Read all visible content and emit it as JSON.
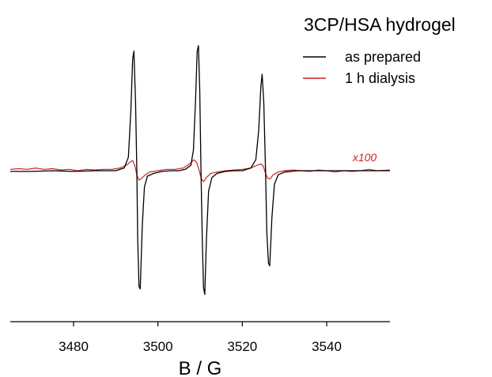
{
  "chart_data": {
    "type": "line",
    "title": "3CP/HSA hydrogel",
    "xlabel": "B / G",
    "ylabel": "",
    "xlim": [
      3465,
      3555
    ],
    "ylim": [
      -1.0,
      1.0
    ],
    "x_ticks": [
      3480,
      3500,
      3520,
      3540
    ],
    "y_axis_visible": false,
    "grid": false,
    "legend_position": "top-right",
    "annotations": [
      {
        "text": "x100",
        "x": 3549,
        "y": 0.07,
        "color": "#cc2222",
        "italic": true
      }
    ],
    "series": [
      {
        "name": "as prepared",
        "color": "#000000",
        "points": [
          [
            3465.0,
            -0.005
          ],
          [
            3470.0,
            -0.005
          ],
          [
            3475.0,
            0.0
          ],
          [
            3480.0,
            -0.005
          ],
          [
            3485.0,
            0.0
          ],
          [
            3490.0,
            0.0
          ],
          [
            3492.0,
            0.02
          ],
          [
            3493.0,
            0.1
          ],
          [
            3493.6,
            0.45
          ],
          [
            3494.0,
            0.82
          ],
          [
            3494.3,
            0.88
          ],
          [
            3494.7,
            0.5
          ],
          [
            3495.0,
            0.0
          ],
          [
            3495.2,
            -0.5
          ],
          [
            3495.5,
            -0.85
          ],
          [
            3495.8,
            -0.87
          ],
          [
            3496.3,
            -0.4
          ],
          [
            3496.8,
            -0.12
          ],
          [
            3497.5,
            -0.04
          ],
          [
            3499.0,
            -0.02
          ],
          [
            3501.0,
            -0.005
          ],
          [
            3503.0,
            0.0
          ],
          [
            3505.0,
            0.0
          ],
          [
            3506.5,
            0.01
          ],
          [
            3507.8,
            0.04
          ],
          [
            3508.4,
            0.15
          ],
          [
            3508.9,
            0.5
          ],
          [
            3509.3,
            0.88
          ],
          [
            3509.6,
            0.92
          ],
          [
            3509.9,
            0.6
          ],
          [
            3510.2,
            0.0
          ],
          [
            3510.5,
            -0.5
          ],
          [
            3510.8,
            -0.86
          ],
          [
            3511.1,
            -0.91
          ],
          [
            3511.5,
            -0.5
          ],
          [
            3512.0,
            -0.15
          ],
          [
            3512.8,
            -0.05
          ],
          [
            3514.0,
            -0.02
          ],
          [
            3516.0,
            -0.005
          ],
          [
            3518.0,
            0.0
          ],
          [
            3520.0,
            0.0
          ],
          [
            3522.0,
            0.02
          ],
          [
            3523.2,
            0.08
          ],
          [
            3523.9,
            0.3
          ],
          [
            3524.4,
            0.62
          ],
          [
            3524.7,
            0.71
          ],
          [
            3525.1,
            0.5
          ],
          [
            3525.5,
            0.0
          ],
          [
            3525.8,
            -0.45
          ],
          [
            3526.2,
            -0.68
          ],
          [
            3526.5,
            -0.7
          ],
          [
            3527.0,
            -0.35
          ],
          [
            3527.6,
            -0.1
          ],
          [
            3528.5,
            -0.03
          ],
          [
            3530.0,
            -0.01
          ],
          [
            3533.0,
            0.0
          ],
          [
            3540.0,
            0.0
          ],
          [
            3545.0,
            0.0
          ],
          [
            3550.0,
            0.0
          ],
          [
            3555.0,
            0.0
          ]
        ]
      },
      {
        "name": "1 h dialysis",
        "color": "#cc2222",
        "points": [
          [
            3465.0,
            0.01
          ],
          [
            3467.0,
            0.015
          ],
          [
            3469.0,
            0.01
          ],
          [
            3471.0,
            0.02
          ],
          [
            3473.0,
            0.01
          ],
          [
            3475.0,
            0.015
          ],
          [
            3477.0,
            0.005
          ],
          [
            3479.0,
            0.01
          ],
          [
            3481.0,
            0.0
          ],
          [
            3483.0,
            0.01
          ],
          [
            3485.0,
            0.005
          ],
          [
            3487.0,
            0.01
          ],
          [
            3489.0,
            0.01
          ],
          [
            3491.0,
            0.02
          ],
          [
            3492.5,
            0.04
          ],
          [
            3493.5,
            0.065
          ],
          [
            3494.0,
            0.075
          ],
          [
            3494.5,
            0.04
          ],
          [
            3495.0,
            -0.03
          ],
          [
            3495.5,
            -0.07
          ],
          [
            3496.0,
            -0.06
          ],
          [
            3497.0,
            -0.03
          ],
          [
            3498.0,
            -0.01
          ],
          [
            3500.0,
            0.0
          ],
          [
            3502.0,
            0.01
          ],
          [
            3504.0,
            0.01
          ],
          [
            3506.0,
            0.02
          ],
          [
            3507.5,
            0.05
          ],
          [
            3508.5,
            0.08
          ],
          [
            3509.2,
            0.06
          ],
          [
            3509.8,
            0.0
          ],
          [
            3510.3,
            -0.06
          ],
          [
            3510.8,
            -0.08
          ],
          [
            3511.5,
            -0.05
          ],
          [
            3512.5,
            -0.02
          ],
          [
            3514.0,
            -0.01
          ],
          [
            3516.0,
            0.0
          ],
          [
            3518.0,
            0.005
          ],
          [
            3520.0,
            0.01
          ],
          [
            3522.0,
            0.02
          ],
          [
            3523.5,
            0.04
          ],
          [
            3524.5,
            0.05
          ],
          [
            3525.0,
            0.03
          ],
          [
            3525.5,
            -0.02
          ],
          [
            3526.0,
            -0.055
          ],
          [
            3526.6,
            -0.06
          ],
          [
            3527.3,
            -0.03
          ],
          [
            3528.5,
            -0.01
          ],
          [
            3530.0,
            0.0
          ],
          [
            3532.0,
            0.005
          ],
          [
            3534.0,
            0.0
          ],
          [
            3536.0,
            -0.005
          ],
          [
            3538.0,
            0.005
          ],
          [
            3540.0,
            0.0
          ],
          [
            3542.0,
            -0.01
          ],
          [
            3544.0,
            0.0
          ],
          [
            3546.0,
            -0.005
          ],
          [
            3548.0,
            0.0
          ],
          [
            3550.0,
            0.01
          ],
          [
            3552.0,
            0.0
          ],
          [
            3555.0,
            0.005
          ]
        ]
      }
    ]
  }
}
